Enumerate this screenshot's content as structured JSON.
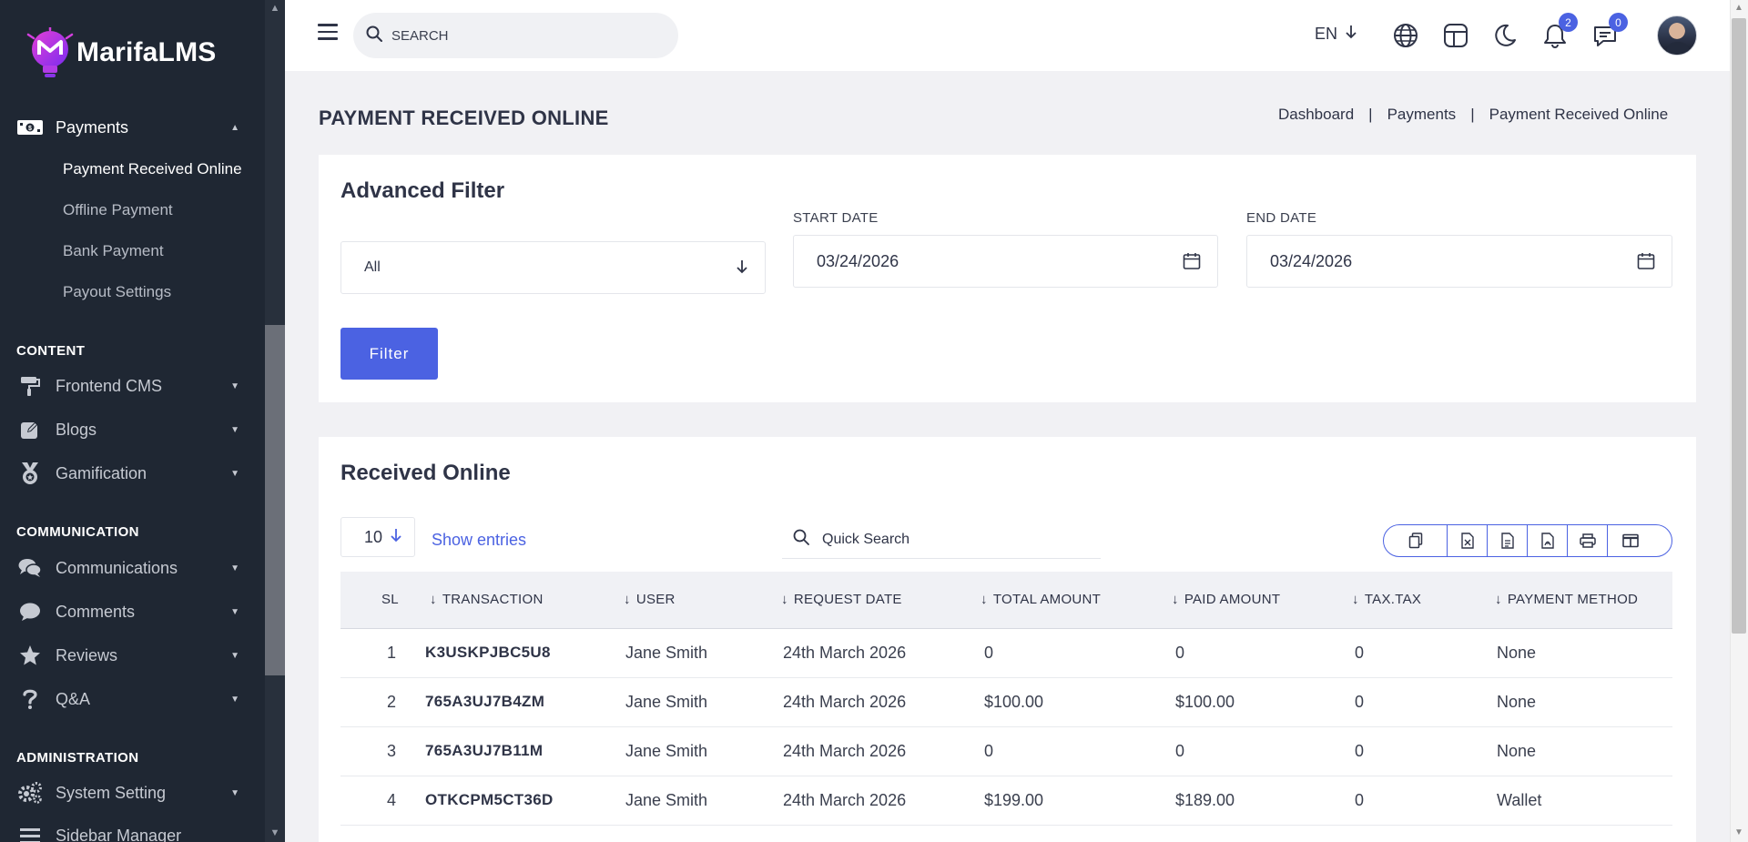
{
  "app": {
    "name": "MarifaLMS"
  },
  "sidebar": {
    "payments": {
      "label": "Payments"
    },
    "payments_sub": [
      {
        "label": "Payment Received Online",
        "current": true
      },
      {
        "label": "Offline Payment"
      },
      {
        "label": "Bank Payment"
      },
      {
        "label": "Payout Settings"
      }
    ],
    "sections": {
      "content": "CONTENT",
      "communication": "COMMUNICATION",
      "administration": "ADMINISTRATION"
    },
    "content_items": [
      {
        "label": "Frontend CMS",
        "icon": "paint-roller-icon"
      },
      {
        "label": "Blogs",
        "icon": "edit-icon"
      },
      {
        "label": "Gamification",
        "icon": "medal-icon"
      }
    ],
    "communication_items": [
      {
        "label": "Communications",
        "icon": "chat-bubbles-icon"
      },
      {
        "label": "Comments",
        "icon": "comment-icon"
      },
      {
        "label": "Reviews",
        "icon": "star-icon"
      },
      {
        "label": "Q&A",
        "icon": "question-icon"
      }
    ],
    "administration_items": [
      {
        "label": "System Setting",
        "icon": "gears-icon"
      },
      {
        "label": "Sidebar Manager",
        "icon": "bars-icon"
      }
    ]
  },
  "topbar": {
    "search_placeholder": "SEARCH",
    "language": "EN",
    "notifications_count": "2",
    "messages_count": "0"
  },
  "page": {
    "title": "PAYMENT RECEIVED ONLINE",
    "breadcrumb": [
      "Dashboard",
      "Payments",
      "Payment Received Online"
    ],
    "separator": "|"
  },
  "filter": {
    "title": "Advanced Filter",
    "select_value": "All",
    "start_label": "START DATE",
    "start_value": "03/24/2026",
    "end_label": "END DATE",
    "end_value": "03/24/2026",
    "button": "Filter"
  },
  "received": {
    "title": "Received Online",
    "entries_value": "10",
    "show_entries": "Show entries",
    "quick_search_placeholder": "Quick Search",
    "columns": [
      "SL",
      "TRANSACTION",
      "USER",
      "REQUEST DATE",
      "TOTAL AMOUNT",
      "PAID AMOUNT",
      "TAX.TAX",
      "PAYMENT METHOD"
    ],
    "rows": [
      {
        "sl": "1",
        "transaction": "K3USKPJBC5U8",
        "user": "Jane Smith",
        "date": "24th March 2026",
        "total": "0",
        "paid": "0",
        "tax": "0",
        "method": "None"
      },
      {
        "sl": "2",
        "transaction": "765A3UJ7B4ZM",
        "user": "Jane Smith",
        "date": "24th March 2026",
        "total": "$100.00",
        "paid": "$100.00",
        "tax": "0",
        "method": "None"
      },
      {
        "sl": "3",
        "transaction": "765A3UJ7B11M",
        "user": "Jane Smith",
        "date": "24th March 2026",
        "total": "0",
        "paid": "0",
        "tax": "0",
        "method": "None"
      },
      {
        "sl": "4",
        "transaction": "OTKCPM5CT36D",
        "user": "Jane Smith",
        "date": "24th March 2026",
        "total": "$199.00",
        "paid": "$189.00",
        "tax": "0",
        "method": "Wallet"
      }
    ]
  },
  "colors": {
    "accent": "#4b62e2",
    "sidebar_bg": "#1f2733",
    "page_bg": "#f1f1f4"
  }
}
